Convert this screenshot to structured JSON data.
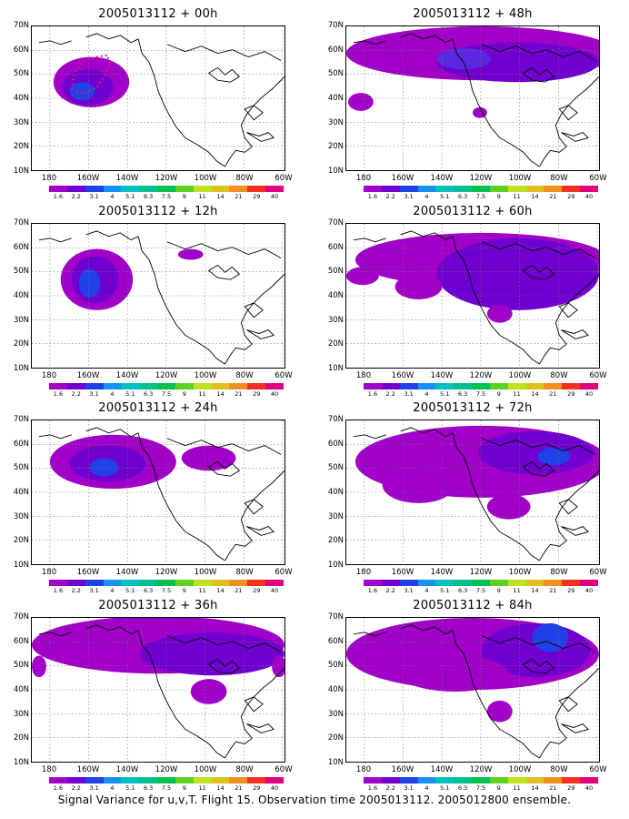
{
  "caption": "Signal Variance for u,v,T. Flight 15. Observation time 2005013112. 2005012800 ensemble.",
  "latitude_labels": [
    "70N",
    "60N",
    "50N",
    "40N",
    "30N",
    "20N",
    "10N"
  ],
  "longitude_labels": [
    "180",
    "160W",
    "140W",
    "120W",
    "100W",
    "80W",
    "60W"
  ],
  "colorbar": {
    "labels": [
      "1.6",
      "2.2",
      "3.1",
      "4",
      "5.1",
      "6.3",
      "7.5",
      "9",
      "11",
      "14",
      "21",
      "29",
      "40"
    ],
    "colors": [
      "#a000c8",
      "#7000d0",
      "#2040e8",
      "#1890f0",
      "#00c0c0",
      "#00c090",
      "#00c050",
      "#60d020",
      "#c0e020",
      "#e0c020",
      "#f09020",
      "#f03020",
      "#e00080"
    ]
  },
  "panels": [
    {
      "title": "2005013112 + 00h",
      "lead": "00h"
    },
    {
      "title": "2005013112 + 48h",
      "lead": "48h"
    },
    {
      "title": "2005013112 + 12h",
      "lead": "12h"
    },
    {
      "title": "2005013112 + 60h",
      "lead": "60h"
    },
    {
      "title": "2005013112 + 24h",
      "lead": "24h"
    },
    {
      "title": "2005013112 + 72h",
      "lead": "72h"
    },
    {
      "title": "2005013112 + 36h",
      "lead": "36h"
    },
    {
      "title": "2005013112 + 84h",
      "lead": "84h"
    }
  ],
  "map_extent": {
    "lon_range": [
      "180",
      "60W"
    ],
    "lat_range": [
      "10N",
      "70N"
    ],
    "grid": "dotted"
  }
}
